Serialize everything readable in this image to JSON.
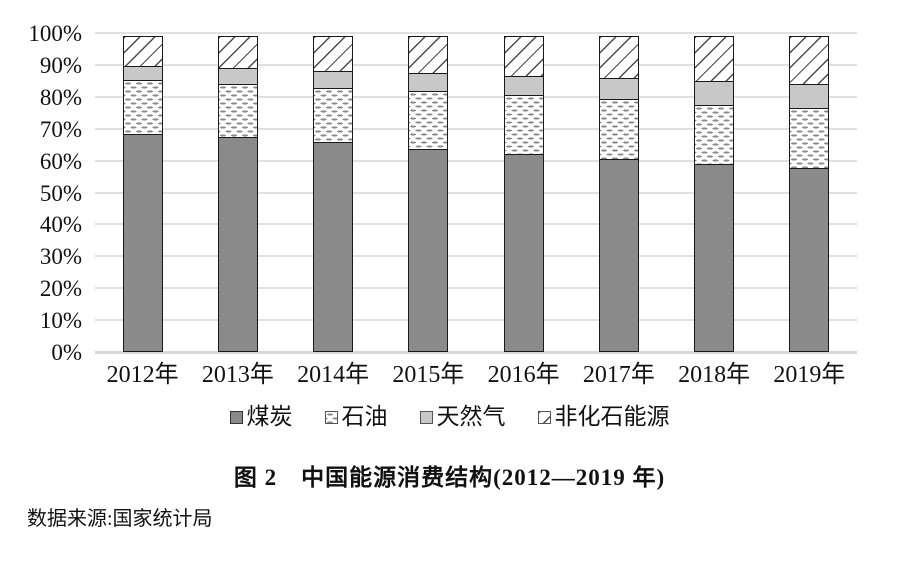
{
  "title": "图 2　中国能源消费结构(2012—2019 年)",
  "source": "数据来源:国家统计局",
  "colors": {
    "coal": "#8a8a8a",
    "natural_gas": "#c8c8c8",
    "gridline": "#e1e1e1",
    "segment_border": "#1a1a1a",
    "hatch_line": "#4a4a4a",
    "oil_dash": "#8a8a8a"
  },
  "chart_data": {
    "type": "bar",
    "stacked": true,
    "title": "图 2　中国能源消费结构(2012—2019 年)",
    "xlabel": "",
    "ylabel": "",
    "ylim": [
      0,
      100
    ],
    "grid": true,
    "legend_position": "bottom",
    "y_ticks": [
      "100%",
      "90%",
      "80%",
      "70%",
      "60%",
      "50%",
      "40%",
      "30%",
      "20%",
      "10%",
      "0%"
    ],
    "categories": [
      "2012年",
      "2013年",
      "2014年",
      "2015年",
      "2016年",
      "2017年",
      "2018年",
      "2019年"
    ],
    "series": [
      {
        "name": "煤炭",
        "pattern": "solid-dark",
        "values": [
          68.5,
          67.4,
          65.8,
          63.8,
          62.2,
          60.6,
          59.0,
          57.7
        ]
      },
      {
        "name": "石油",
        "pattern": "dashed",
        "values": [
          17.0,
          17.1,
          17.3,
          18.4,
          18.7,
          18.9,
          18.9,
          19.0
        ]
      },
      {
        "name": "天然气",
        "pattern": "solid-light",
        "values": [
          4.8,
          5.3,
          5.6,
          5.8,
          6.1,
          6.9,
          7.6,
          8.0
        ]
      },
      {
        "name": "非化石能源",
        "pattern": "diagonal-hatch",
        "values": [
          9.7,
          10.2,
          11.3,
          12.0,
          13.0,
          13.6,
          14.5,
          15.3
        ]
      }
    ]
  }
}
